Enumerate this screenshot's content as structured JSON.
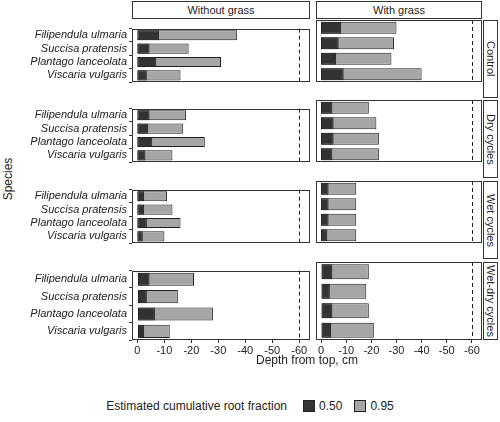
{
  "chart_data": {
    "type": "bar",
    "orientation": "horizontal",
    "x_label": "Depth from top, cm",
    "y_label": "Species",
    "legend_title": "Estimated cumulative root fraction",
    "categories": [
      "Filipendula ulmaria",
      "Succisa pratensis",
      "Plantago lanceolata",
      "Viscaria vulgaris"
    ],
    "facet_columns": [
      "Without grass",
      "With grass"
    ],
    "facet_rows": [
      "Control",
      "Dry cycles",
      "Wet cycles",
      "Wet-dry cycles"
    ],
    "xlim": [
      2,
      -64
    ],
    "xticks": [
      0,
      -10,
      -20,
      -30,
      -40,
      -50,
      -60
    ],
    "vline": -60,
    "grid": false,
    "panels": [
      {
        "column": "Without grass",
        "row": "Control",
        "series": [
          {
            "name": "0.50",
            "color": "#333333",
            "values": [
              -8,
              -4.5,
              -7,
              -3.5
            ]
          },
          {
            "name": "0.95",
            "color": "#a6a6a6",
            "values": [
              -37,
              -19,
              -31,
              -16
            ]
          }
        ]
      },
      {
        "column": "With grass",
        "row": "Control",
        "series": [
          {
            "name": "0.50",
            "color": "#333333",
            "values": [
              -8,
              -7,
              -6,
              -9
            ]
          },
          {
            "name": "0.95",
            "color": "#a6a6a6",
            "values": [
              -30,
              -29,
              -28,
              -40
            ]
          }
        ]
      },
      {
        "column": "Without grass",
        "row": "Dry cycles",
        "series": [
          {
            "name": "0.50",
            "color": "#333333",
            "values": [
              -4.5,
              -4,
              -5.5,
              -3
            ]
          },
          {
            "name": "0.95",
            "color": "#a6a6a6",
            "values": [
              -18,
              -17,
              -25,
              -13
            ]
          }
        ]
      },
      {
        "column": "With grass",
        "row": "Dry cycles",
        "series": [
          {
            "name": "0.50",
            "color": "#333333",
            "values": [
              -4.5,
              -5,
              -5,
              -4.5
            ]
          },
          {
            "name": "0.95",
            "color": "#a6a6a6",
            "values": [
              -19,
              -22,
              -23,
              -23
            ]
          }
        ]
      },
      {
        "column": "Without grass",
        "row": "Wet cycles",
        "series": [
          {
            "name": "0.50",
            "color": "#333333",
            "values": [
              -2.5,
              -2.5,
              -3.5,
              -2
            ]
          },
          {
            "name": "0.95",
            "color": "#a6a6a6",
            "values": [
              -11,
              -13,
              -16,
              -10
            ]
          }
        ]
      },
      {
        "column": "With grass",
        "row": "Wet cycles",
        "series": [
          {
            "name": "0.50",
            "color": "#333333",
            "values": [
              -3,
              -3,
              -3,
              -2.5
            ]
          },
          {
            "name": "0.95",
            "color": "#a6a6a6",
            "values": [
              -14,
              -14,
              -14,
              -14
            ]
          }
        ]
      },
      {
        "column": "Without grass",
        "row": "Wet-dry cycles",
        "series": [
          {
            "name": "0.50",
            "color": "#333333",
            "values": [
              -4.5,
              -3.5,
              -6.5,
              -2.5
            ]
          },
          {
            "name": "0.95",
            "color": "#a6a6a6",
            "values": [
              -21,
              -15,
              -28,
              -12
            ]
          }
        ]
      },
      {
        "column": "With grass",
        "row": "Wet-dry cycles",
        "series": [
          {
            "name": "0.50",
            "color": "#333333",
            "values": [
              -4.5,
              -3.5,
              -4.5,
              -4
            ]
          },
          {
            "name": "0.95",
            "color": "#a6a6a6",
            "values": [
              -19,
              -18,
              -19,
              -21
            ]
          }
        ]
      }
    ]
  }
}
